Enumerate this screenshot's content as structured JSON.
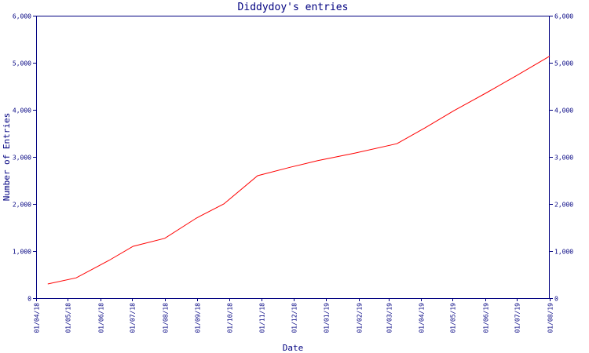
{
  "chart_data": {
    "type": "line",
    "title": "Diddydoy's entries",
    "xlabel": "Date",
    "ylabel": "Number of Entries",
    "ylim": [
      0,
      6000
    ],
    "yticks": [
      0,
      1000,
      2000,
      3000,
      4000,
      5000,
      6000
    ],
    "ytick_labels": [
      "0",
      "1,000",
      "2,000",
      "3,000",
      "4,000",
      "5,000",
      "6,000"
    ],
    "xlim": [
      "2018-04-01",
      "2019-08-01"
    ],
    "xticks": [
      "2018-04-01",
      "2018-05-01",
      "2018-06-01",
      "2018-07-01",
      "2018-08-01",
      "2018-09-01",
      "2018-10-01",
      "2018-11-01",
      "2018-12-01",
      "2019-01-01",
      "2019-02-01",
      "2019-03-01",
      "2019-04-01",
      "2019-05-01",
      "2019-06-01",
      "2019-07-01",
      "2019-08-01"
    ],
    "xtick_labels": [
      "01/04/18",
      "01/05/18",
      "01/06/18",
      "01/07/18",
      "01/08/18",
      "01/09/18",
      "01/10/18",
      "01/11/18",
      "01/12/18",
      "01/01/19",
      "01/02/19",
      "01/03/19",
      "01/04/19",
      "01/05/19",
      "01/06/19",
      "01/07/19",
      "01/08/19"
    ],
    "grid": false,
    "secondary_y_axis": true,
    "series": [
      {
        "color": "#ff0000",
        "x": [
          "2018-04-12",
          "2018-05-09",
          "2018-06-09",
          "2018-07-02",
          "2018-08-01",
          "2018-08-31",
          "2018-09-26",
          "2018-10-28",
          "2018-11-28",
          "2018-12-24",
          "2019-01-28",
          "2019-03-09",
          "2019-04-05",
          "2019-05-02",
          "2019-06-01",
          "2019-06-30",
          "2019-08-01"
        ],
        "values": [
          300,
          430,
          800,
          1100,
          1270,
          1700,
          2000,
          2600,
          2780,
          2920,
          3080,
          3280,
          3620,
          3980,
          4350,
          4720,
          5140
        ]
      }
    ]
  }
}
